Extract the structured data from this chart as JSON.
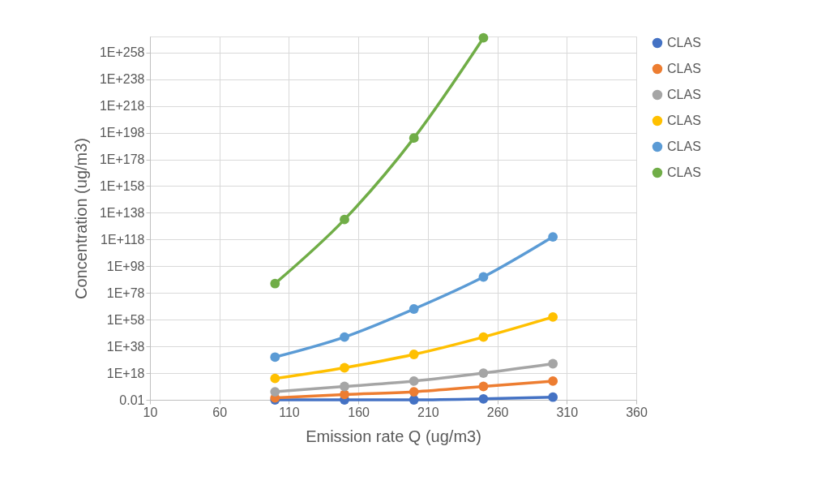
{
  "chart_data": {
    "type": "line",
    "xlabel": "Emission rate Q (ug/m3)",
    "ylabel": "Concentration (ug/m3)",
    "x": [
      100,
      150,
      200,
      250,
      300
    ],
    "series": [
      {
        "name": "CLAS",
        "color": "#4472c4",
        "values": [
          0.01,
          0.01,
          0.01,
          0.05,
          1
        ]
      },
      {
        "name": "CLAS",
        "color": "#ed7d31",
        "values": [
          0.3,
          100,
          10000.0,
          100000000.0,
          1000000000000.0
        ]
      },
      {
        "name": "CLAS",
        "color": "#a5a5a5",
        "values": [
          10000.0,
          100000000.0,
          1000000000000.0,
          1e+18,
          1e+25
        ]
      },
      {
        "name": "CLAS",
        "color": "#ffc000",
        "values": [
          100000000000000.0,
          1e+22,
          1e+32,
          1e+45,
          1e+60
        ]
      },
      {
        "name": "CLAS",
        "color": "#5b9bd5",
        "values": [
          1e+30,
          1e+45,
          1e+66,
          1e+90,
          1e+120
        ]
      },
      {
        "name": "CLAS",
        "color": "#70ad47",
        "values": [
          1e+85,
          1e+133,
          1e+194,
          1e+269,
          null
        ]
      }
    ],
    "log": "y",
    "ylim": [
      0.01,
      1e+270
    ],
    "yticks": [
      0.01,
      {
        "value": 1e+18,
        "label": "1E+18"
      },
      {
        "value": 1e+38,
        "label": "1E+38"
      },
      {
        "value": 1e+58,
        "label": "1E+58"
      },
      {
        "value": 1e+78,
        "label": "1E+78"
      },
      {
        "value": 1e+98,
        "label": "1E+98"
      },
      {
        "value": 1e+118,
        "label": "1E+118"
      },
      {
        "value": 1e+138,
        "label": "1E+138"
      },
      {
        "value": 1e+158,
        "label": "1E+158"
      },
      {
        "value": 1e+178,
        "label": "1E+178"
      },
      {
        "value": 1e+198,
        "label": "1E+198"
      },
      {
        "value": 1e+218,
        "label": "1E+218"
      },
      {
        "value": 1e+238,
        "label": "1E+238"
      },
      {
        "value": 1e+258,
        "label": "1E+258"
      }
    ],
    "xlim": [
      10,
      360
    ],
    "xticks": [
      10,
      60,
      110,
      160,
      210,
      260,
      310,
      360
    ],
    "grid": true,
    "legend": "right",
    "marker": "circle",
    "line_style": "solid"
  }
}
